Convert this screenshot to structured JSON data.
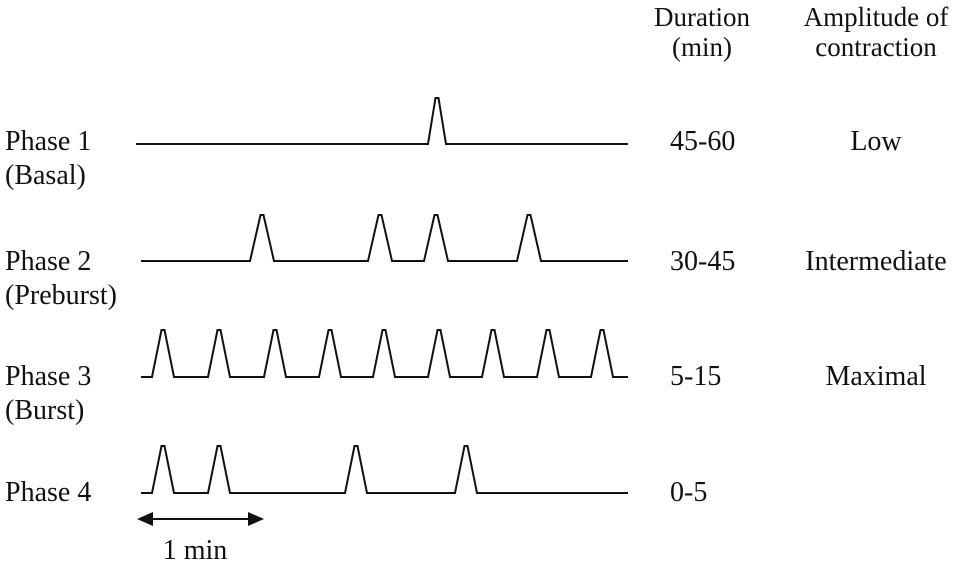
{
  "headers": {
    "duration_line1": "Duration",
    "duration_line2": "(min)",
    "amplitude_line1": "Amplitude of",
    "amplitude_line2": "contraction"
  },
  "phases": [
    {
      "name": "Phase 1",
      "sub": "(Basal)",
      "duration": "45-60",
      "amplitude": "Low",
      "contractions": 1
    },
    {
      "name": "Phase 2",
      "sub": "(Preburst)",
      "duration": "30-45",
      "amplitude": "Intermediate",
      "contractions": 4
    },
    {
      "name": "Phase 3",
      "sub": "(Burst)",
      "duration": "5-15",
      "amplitude": "Maximal",
      "contractions": 9
    },
    {
      "name": "Phase 4",
      "sub": "",
      "duration": "0-5",
      "amplitude": "",
      "contractions": 4
    }
  ],
  "scale": {
    "label": "1 min"
  },
  "colors": {
    "ink": "#111111",
    "background": "#ffffff"
  }
}
